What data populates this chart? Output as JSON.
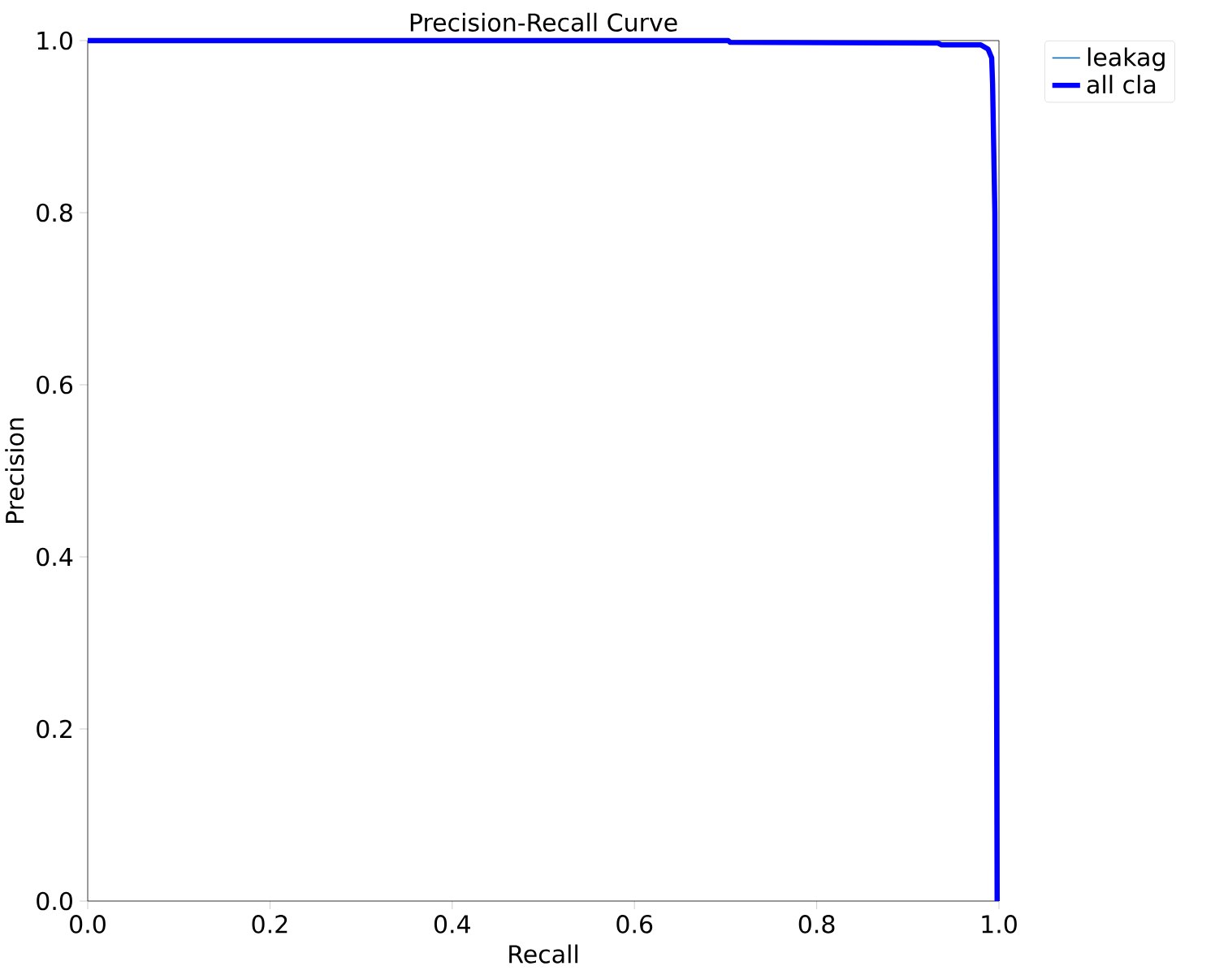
{
  "chart_data": {
    "type": "line",
    "title": "Precision-Recall Curve",
    "xlabel": "Recall",
    "ylabel": "Precision",
    "x": [
      0,
      0.703,
      0.705,
      0.933,
      0.937,
      0.98,
      0.988,
      0.992,
      0.993,
      0.9955,
      0.997,
      0.998
    ],
    "series": [
      {
        "name": "leakag",
        "color": "#1f77b4",
        "values": [
          null,
          null,
          null,
          null,
          null,
          null,
          null,
          null,
          null,
          null,
          null,
          null
        ]
      },
      {
        "name": "all cla",
        "color": "#0000ff",
        "values": [
          1.0,
          1.0,
          0.998,
          0.997,
          0.995,
          0.995,
          0.99,
          0.98,
          0.95,
          0.8,
          0.4,
          0.0
        ]
      }
    ],
    "xlim": [
      0,
      1
    ],
    "ylim": [
      0,
      1
    ],
    "xticks": [
      {
        "value": 0,
        "label": "0.0"
      },
      0.2,
      0.4,
      0.6,
      0.8,
      {
        "value": 1,
        "label": "1.0"
      }
    ],
    "yticks": [
      {
        "value": 0,
        "label": "0.0"
      },
      0.2,
      0.4,
      0.6,
      0.8,
      {
        "value": 1,
        "label": "1.0"
      }
    ],
    "legend": "top right"
  }
}
